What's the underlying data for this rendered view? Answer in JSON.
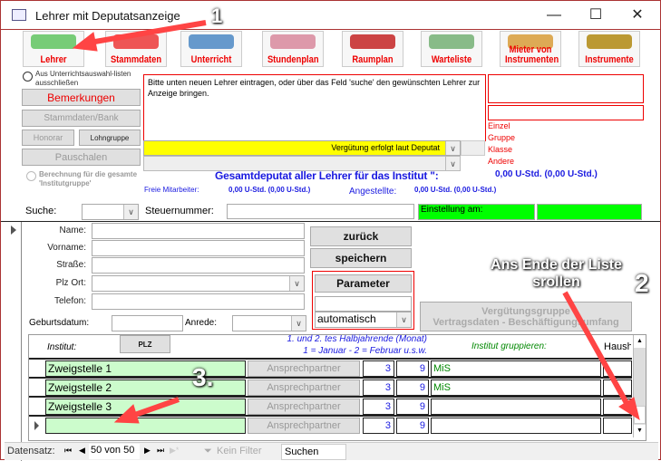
{
  "window": {
    "title": "Lehrer mit Deputatsanzeige",
    "minimize": "—",
    "maximize": "☐",
    "close": "✕"
  },
  "toolbar": [
    {
      "label": "Lehrer",
      "color": "#7c7"
    },
    {
      "label": "Stammdaten",
      "color": "#e55"
    },
    {
      "label": "Unterricht",
      "color": "#69c"
    },
    {
      "label": "Stundenplan",
      "color": "#d9a"
    },
    {
      "label": "Raumplan",
      "color": "#c44"
    },
    {
      "label": "Warteliste",
      "color": "#8b8"
    },
    {
      "label": "Mieter von Instrumenten",
      "color": "#da5"
    },
    {
      "label": "Instrumente",
      "color": "#b93"
    }
  ],
  "left_panel": {
    "exclude_radio": "Aus Unterrichtsauswahl-listen ausschließen",
    "bemerkungen": "Bemerkungen",
    "stammdaten_bank": "Stammdaten/Bank",
    "honorar": "Honorar",
    "lohngruppe": "Lohngruppe",
    "pauschalen": "Pauschalen",
    "berechnung_radio": "Berechnung für die gesamte 'Institutgruppe'"
  },
  "info_text": "Bitte unten neuen Lehrer eintragen, oder über das Feld 'suche' den gewünschten Lehrer zur Anzeige bringen.",
  "verguetung_select": "Vergütung erfolgt laut Deputat",
  "categories": [
    "Einzel",
    "Gruppe",
    "Klasse",
    "Andere"
  ],
  "deputat": {
    "gesamt_label": "Gesamtdeputat aller Lehrer für das Institut \":",
    "gesamt_value": "0,00 U-Std. (0,00 U-Std.)",
    "freie_label": "Freie Mitarbeiter:",
    "freie_value": "0,00 U-Std. (0,00 U-Std.)",
    "angestellte_label": "Angestellte:",
    "angestellte_value": "0,00 U-Std. (0,00 U-Std.)"
  },
  "search": {
    "suche_label": "Suche:",
    "steuer_label": "Steuernummer:",
    "einstellung_label": "Einstellung am:"
  },
  "form": {
    "name": "Name:",
    "vorname": "Vorname:",
    "strasse": "Straße:",
    "plz_ort": "Plz Ort:",
    "telefon": "Telefon:",
    "geburtsdatum": "Geburtsdatum:",
    "anrede": "Anrede:",
    "zurueck": "zurück",
    "speichern": "speichern",
    "parameter": "Parameter",
    "automatisch": "automatisch",
    "verguetung_btn_1": "Vergütungsgruppe",
    "verguetung_btn_2": "Vertragsdaten - Beschäftigungsumfang"
  },
  "subform": {
    "institut_header": "Institut:",
    "plz_btn": "PLZ",
    "halbjahr_header_1": "1. und 2. tes Halbjahrende (Monat)",
    "halbjahr_header_2": "1 = Januar - 2 = Februar u.s.w.",
    "gruppieren_header": "Institut gruppieren:",
    "haush_header": "Haush",
    "rows": [
      {
        "institut": "Zweigstelle 1",
        "btn": "Ansprechpartner",
        "h1": "3",
        "h2": "9",
        "gruppe": "MiS"
      },
      {
        "institut": "Zweigstelle 2",
        "btn": "Ansprechpartner",
        "h1": "3",
        "h2": "9",
        "gruppe": "MiS"
      },
      {
        "institut": "Zweigstelle 3",
        "btn": "Ansprechpartner",
        "h1": "3",
        "h2": "9",
        "gruppe": ""
      },
      {
        "institut": "",
        "btn": "Ansprechpartner",
        "h1": "3",
        "h2": "9",
        "gruppe": ""
      }
    ]
  },
  "navbar": {
    "label": "Datensatz:",
    "record": "50 von 50",
    "filter": "Kein Filter",
    "search": "Suchen"
  },
  "annotations": {
    "n1": "1",
    "n2": "2",
    "n3": "3.",
    "scroll_hint": "Ans Ende der Liste srollen"
  }
}
